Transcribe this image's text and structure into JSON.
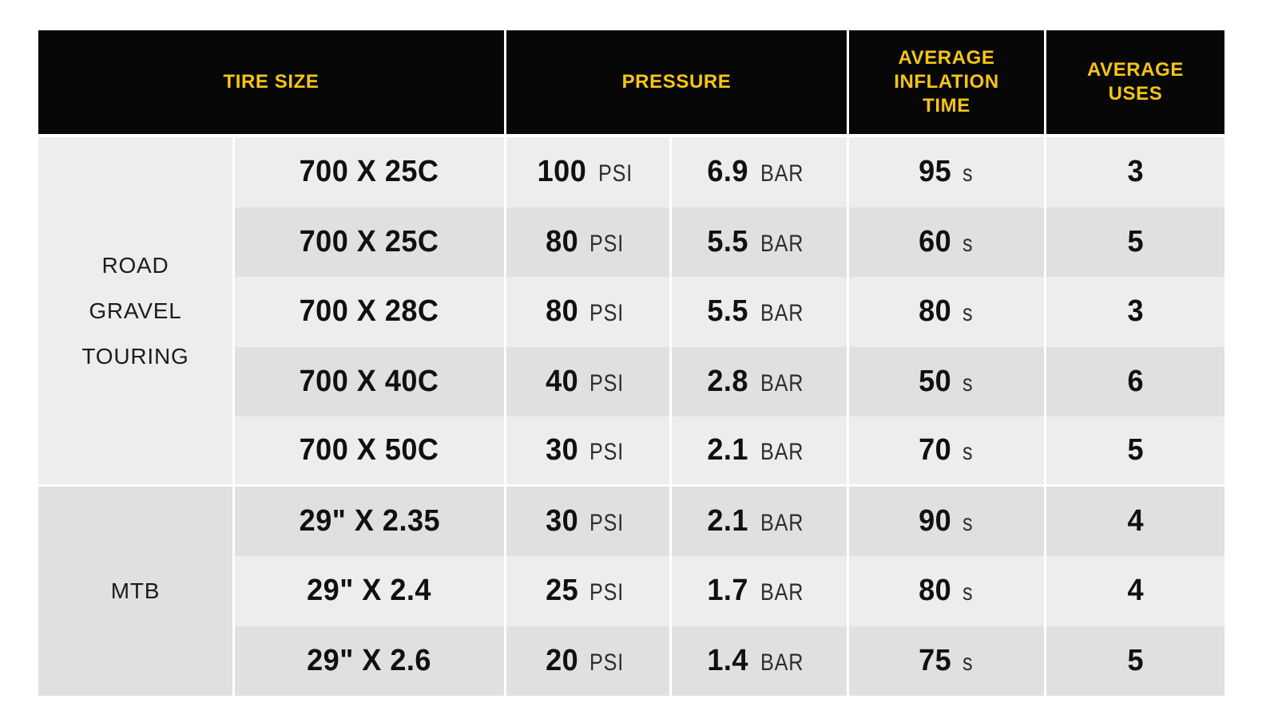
{
  "chart_data": {
    "type": "table",
    "title": "",
    "headers": {
      "tire_size": "TIRE SIZE",
      "pressure": "PRESSURE",
      "avg_inflation_time_lines": [
        "AVERAGE",
        "INFLATION",
        "TIME"
      ],
      "avg_uses_lines": [
        "AVERAGE",
        "USES"
      ]
    },
    "units": {
      "psi": "PSI",
      "bar": "BAR",
      "seconds": "s"
    },
    "groups": [
      {
        "label_lines": [
          "ROAD",
          "GRAVEL",
          "TOURING"
        ],
        "rows": [
          {
            "size": "700 X 25C",
            "psi": "100",
            "bar": "6.9",
            "time_s": "95",
            "uses": "3"
          },
          {
            "size": "700 X 25C",
            "psi": "80",
            "bar": "5.5",
            "time_s": "60",
            "uses": "5"
          },
          {
            "size": "700 X 28C",
            "psi": "80",
            "bar": "5.5",
            "time_s": "80",
            "uses": "3"
          },
          {
            "size": "700 X 40C",
            "psi": "40",
            "bar": "2.8",
            "time_s": "50",
            "uses": "6"
          },
          {
            "size": "700 X 50C",
            "psi": "30",
            "bar": "2.1",
            "time_s": "70",
            "uses": "5"
          }
        ]
      },
      {
        "label_lines": [
          "MTB"
        ],
        "rows": [
          {
            "size": "29\" X 2.35",
            "psi": "30",
            "bar": "2.1",
            "time_s": "90",
            "uses": "4"
          },
          {
            "size": "29\" X 2.4",
            "psi": "25",
            "bar": "1.7",
            "time_s": "80",
            "uses": "4"
          },
          {
            "size": "29\" X 2.6",
            "psi": "20",
            "bar": "1.4",
            "time_s": "75",
            "uses": "5"
          }
        ]
      }
    ],
    "colors": {
      "header_bg": "#070707",
      "header_text": "#F6C514",
      "row_light": "#EDEDED",
      "row_dark": "#E0E0E0",
      "value_text": "#101010",
      "unit_text": "#2E2E2E"
    }
  }
}
